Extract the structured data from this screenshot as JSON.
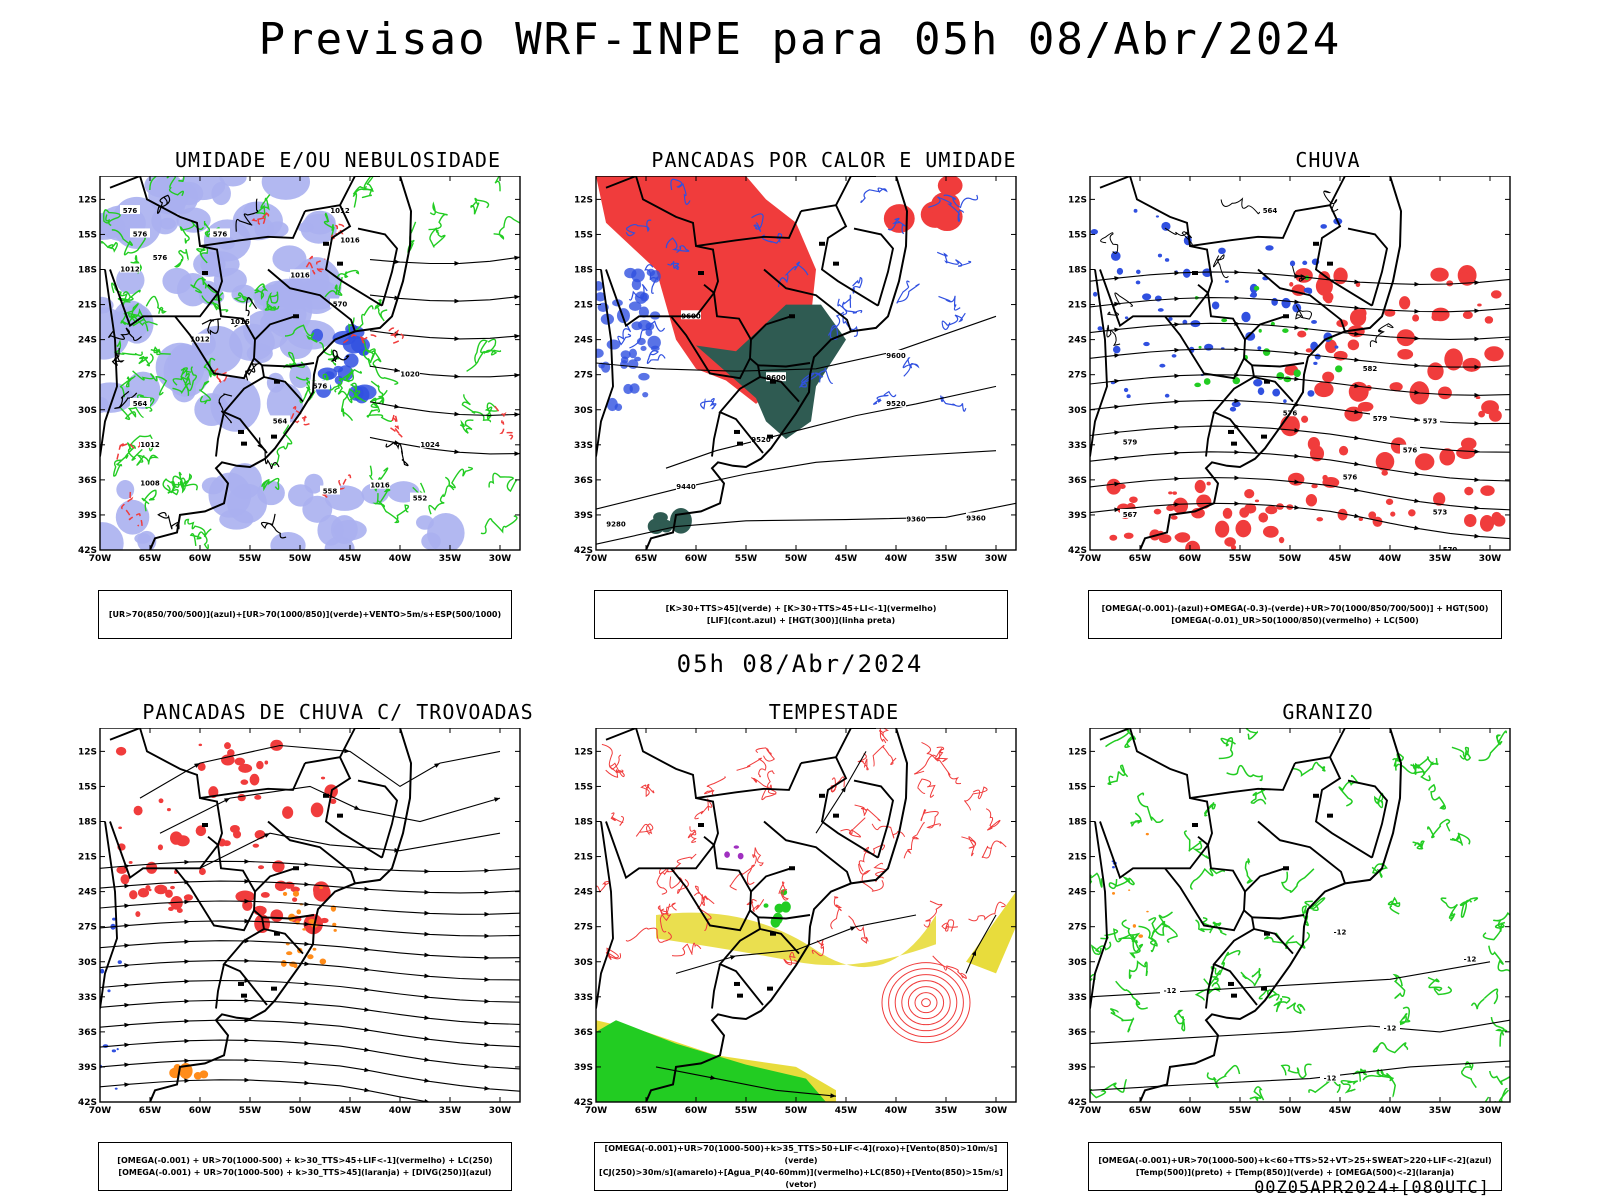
{
  "header": {
    "title": "Previsao WRF-INPE  para 05h 08/Abr/2024",
    "mid_title": "05h 08/Abr/2024",
    "footer": "00Z05APR2024+[080UTC]"
  },
  "colors": {
    "red": "#f03c3c",
    "blue": "#3050e0",
    "light_blue": "#aab0f0",
    "green": "#22cc22",
    "dark_green": "#2f5b52",
    "orange": "#ff8c1a",
    "yellow": "#e8dc3c",
    "black": "#000000"
  },
  "axes": {
    "y_ticks": [
      "12S",
      "15S",
      "18S",
      "21S",
      "24S",
      "27S",
      "30S",
      "33S",
      "36S",
      "39S",
      "42S"
    ],
    "x_ticks": [
      "70W",
      "65W",
      "60W",
      "55W",
      "50W",
      "45W",
      "40W",
      "35W",
      "30W"
    ],
    "x_range_deg_lon": [
      -70,
      -28
    ],
    "y_range_deg_lat": [
      -42,
      -10
    ]
  },
  "panels": [
    {
      "title": "UMIDADE E/OU NEBULOSIDADE",
      "legend": [
        "[UR>70(850/700/500)](azul)+[UR>70(1000/850)](verde)+VENTO>5m/s+ESP(500/1000)"
      ],
      "contour_labels": [
        "1012",
        "1016",
        "1016",
        "1016",
        "1012",
        "1012",
        "1020",
        "1024",
        "1016",
        "1012",
        "1008",
        "576",
        "576",
        "576",
        "576",
        "570",
        "576",
        "564",
        "558",
        "552",
        "564"
      ]
    },
    {
      "title": "PANCADAS POR CALOR E UMIDADE",
      "legend": [
        "[K>30+TTS>45](verde) + [K>30+TTS>45+LI<-1](vermelho)",
        "[LIF](cont.azul) + [HGT(300)](linha preta)"
      ],
      "contour_labels": [
        "9600",
        "9600",
        "9520",
        "9440",
        "9360",
        "9360",
        "9520",
        "9600",
        "9280"
      ]
    },
    {
      "title": "CHUVA",
      "legend": [
        "[OMEGA(-0.001)-(azul)+OMEGA(-0.3)-(verde)+UR>70(1000/850/700/500)] + HGT(500)",
        "[OMEGA(-0.01)_UR>50(1000/850)(vermelho) + LC(500)"
      ],
      "contour_labels": [
        "582",
        "576",
        "576",
        "579",
        "573",
        "567",
        "570",
        "573",
        "576",
        "579",
        "564"
      ]
    },
    {
      "title": "PANCADAS DE CHUVA C/ TROVOADAS",
      "legend": [
        "[OMEGA(-0.001) + UR>70(1000-500) + k>30_TTS>45+LIF<-1](vermelho) + LC(250)",
        "[OMEGA(-0.001) + UR>70(1000-500) + k>30_TTS>45](laranja) + [DIVG(250)](azul)"
      ],
      "contour_labels": []
    },
    {
      "title": "TEMPESTADE",
      "legend": [
        "[OMEGA(-0.001)+UR>70(1000-500)+k>35_TTS>50+LIF<-4](roxo)+[Vento(850)>10m/s](verde)",
        "[CJ(250)>30m/s](amarelo)+[Agua_P(40-60mm)](vermelho)+LC(850)+[Vento(850)>15m/s](vetor)"
      ],
      "contour_labels": []
    },
    {
      "title": "GRANIZO",
      "legend": [
        "[OMEGA(-0.001)+UR>70(1000-500)+k<60+TTS>52+VT>25+SWEAT>220+LIF<-2](azul)",
        "[Temp(500)](preto) + [Temp(850)](verde) + [OMEGA(500)<-2](laranja)"
      ],
      "contour_labels": [
        "-12",
        "-12",
        "-12",
        "-12",
        "-12"
      ]
    }
  ]
}
